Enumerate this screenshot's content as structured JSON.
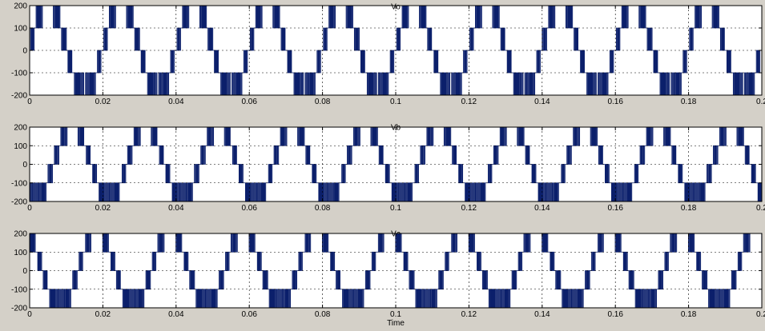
{
  "window": {
    "background": "#d4d0c8",
    "plot_background": "#ffffff",
    "trace_color": "#0b1f6b",
    "grid_color": "#000000"
  },
  "chart_data": [
    {
      "type": "line",
      "title": "Vo",
      "xlabel": "",
      "ylabel": "",
      "xlim": [
        0,
        0.2
      ],
      "ylim": [
        -200,
        200
      ],
      "x_ticks": [
        "0",
        "0.02",
        "0.04",
        "0.06",
        "0.08",
        "0.1",
        "0.12",
        "0.14",
        "0.16",
        "0.18",
        "0.2"
      ],
      "y_ticks": [
        "200",
        "100",
        "0",
        "-100",
        "-200"
      ],
      "grid": true,
      "waveform": {
        "description_values": "multilevel stepped PWM voltage",
        "levels": [
          -200,
          -100,
          0,
          100,
          200
        ],
        "fundamental_frequency_hz": 50,
        "phase_deg": 0,
        "switching_frequency_hz": 1000
      }
    },
    {
      "type": "line",
      "title": "Vb",
      "xlabel": "",
      "ylabel": "",
      "xlim": [
        0,
        0.2
      ],
      "ylim": [
        -200,
        200
      ],
      "x_ticks": [
        "0",
        "0.02",
        "0.04",
        "0.06",
        "0.08",
        "0.1",
        "0.12",
        "0.14",
        "0.16",
        "0.18",
        "0.2"
      ],
      "y_ticks": [
        "200",
        "100",
        "0",
        "-100",
        "-200"
      ],
      "grid": true,
      "waveform": {
        "levels": [
          -200,
          -100,
          0,
          100,
          200
        ],
        "fundamental_frequency_hz": 50,
        "phase_deg": -120,
        "switching_frequency_hz": 1000
      }
    },
    {
      "type": "line",
      "title": "Vc",
      "xlabel": "Time",
      "ylabel": "",
      "xlim": [
        0,
        0.2
      ],
      "ylim": [
        -200,
        200
      ],
      "x_ticks": [
        "0",
        "0.02",
        "0.04",
        "0.06",
        "0.08",
        "0.1",
        "0.12",
        "0.14",
        "0.16",
        "0.18",
        "0.2"
      ],
      "y_ticks": [
        "200",
        "100",
        "0",
        "-100",
        "-200"
      ],
      "grid": true,
      "waveform": {
        "levels": [
          -200,
          -100,
          0,
          100,
          200
        ],
        "fundamental_frequency_hz": 50,
        "phase_deg": 120,
        "switching_frequency_hz": 1000
      }
    }
  ]
}
